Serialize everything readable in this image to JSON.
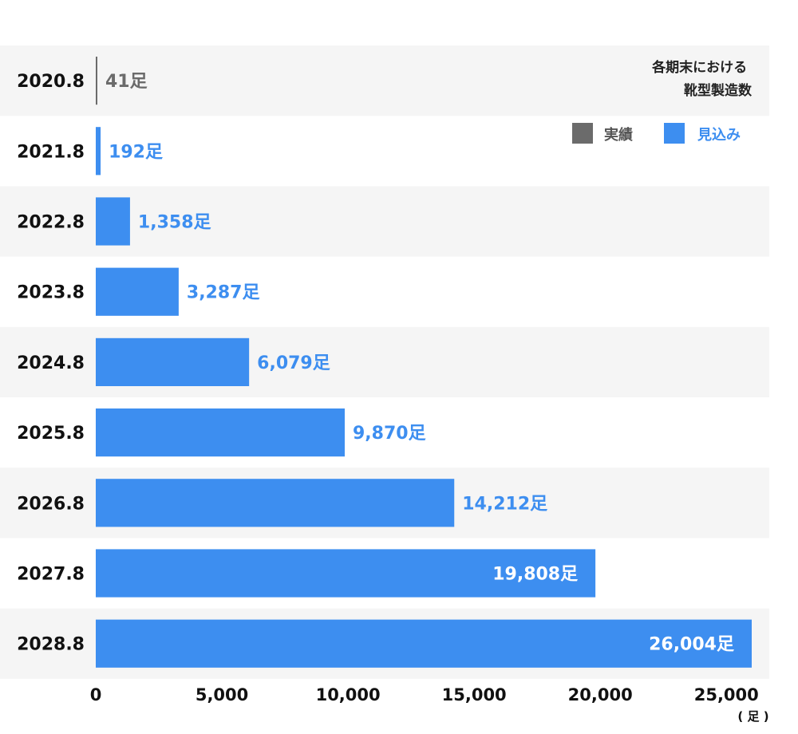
{
  "chart_data": {
    "type": "bar",
    "orientation": "horizontal",
    "title": "各期末における\n靴型製造数",
    "unit_label": "( 足 )",
    "value_suffix": "足",
    "categories": [
      "2020.8",
      "2021.8",
      "2022.8",
      "2023.8",
      "2024.8",
      "2025.8",
      "2026.8",
      "2027.8",
      "2028.8"
    ],
    "values": [
      41,
      192,
      1358,
      3287,
      6079,
      9870,
      14212,
      19808,
      26004
    ],
    "value_labels": [
      "41足",
      "192足",
      "1,358足",
      "3,287足",
      "6,079足",
      "9,870足",
      "14,212足",
      "19,808足",
      "26,004足"
    ],
    "kinds": [
      "actual",
      "forecast",
      "forecast",
      "forecast",
      "forecast",
      "forecast",
      "forecast",
      "forecast",
      "forecast"
    ],
    "label_inside": [
      false,
      false,
      false,
      false,
      false,
      false,
      false,
      true,
      true
    ],
    "xlim": [
      0,
      26700
    ],
    "xticks": [
      0,
      5000,
      10000,
      15000,
      20000,
      25000
    ],
    "xtick_labels": [
      "0",
      "5,000",
      "10,000",
      "15,000",
      "20,000",
      "25,000"
    ],
    "legend": [
      {
        "key": "actual",
        "label": "実績",
        "color": "#6b6b6b"
      },
      {
        "key": "forecast",
        "label": "見込み",
        "color": "#3d8ef0"
      }
    ],
    "legend_position": "top-right",
    "row_stripe_color": "#f5f5f5",
    "grid": false
  }
}
